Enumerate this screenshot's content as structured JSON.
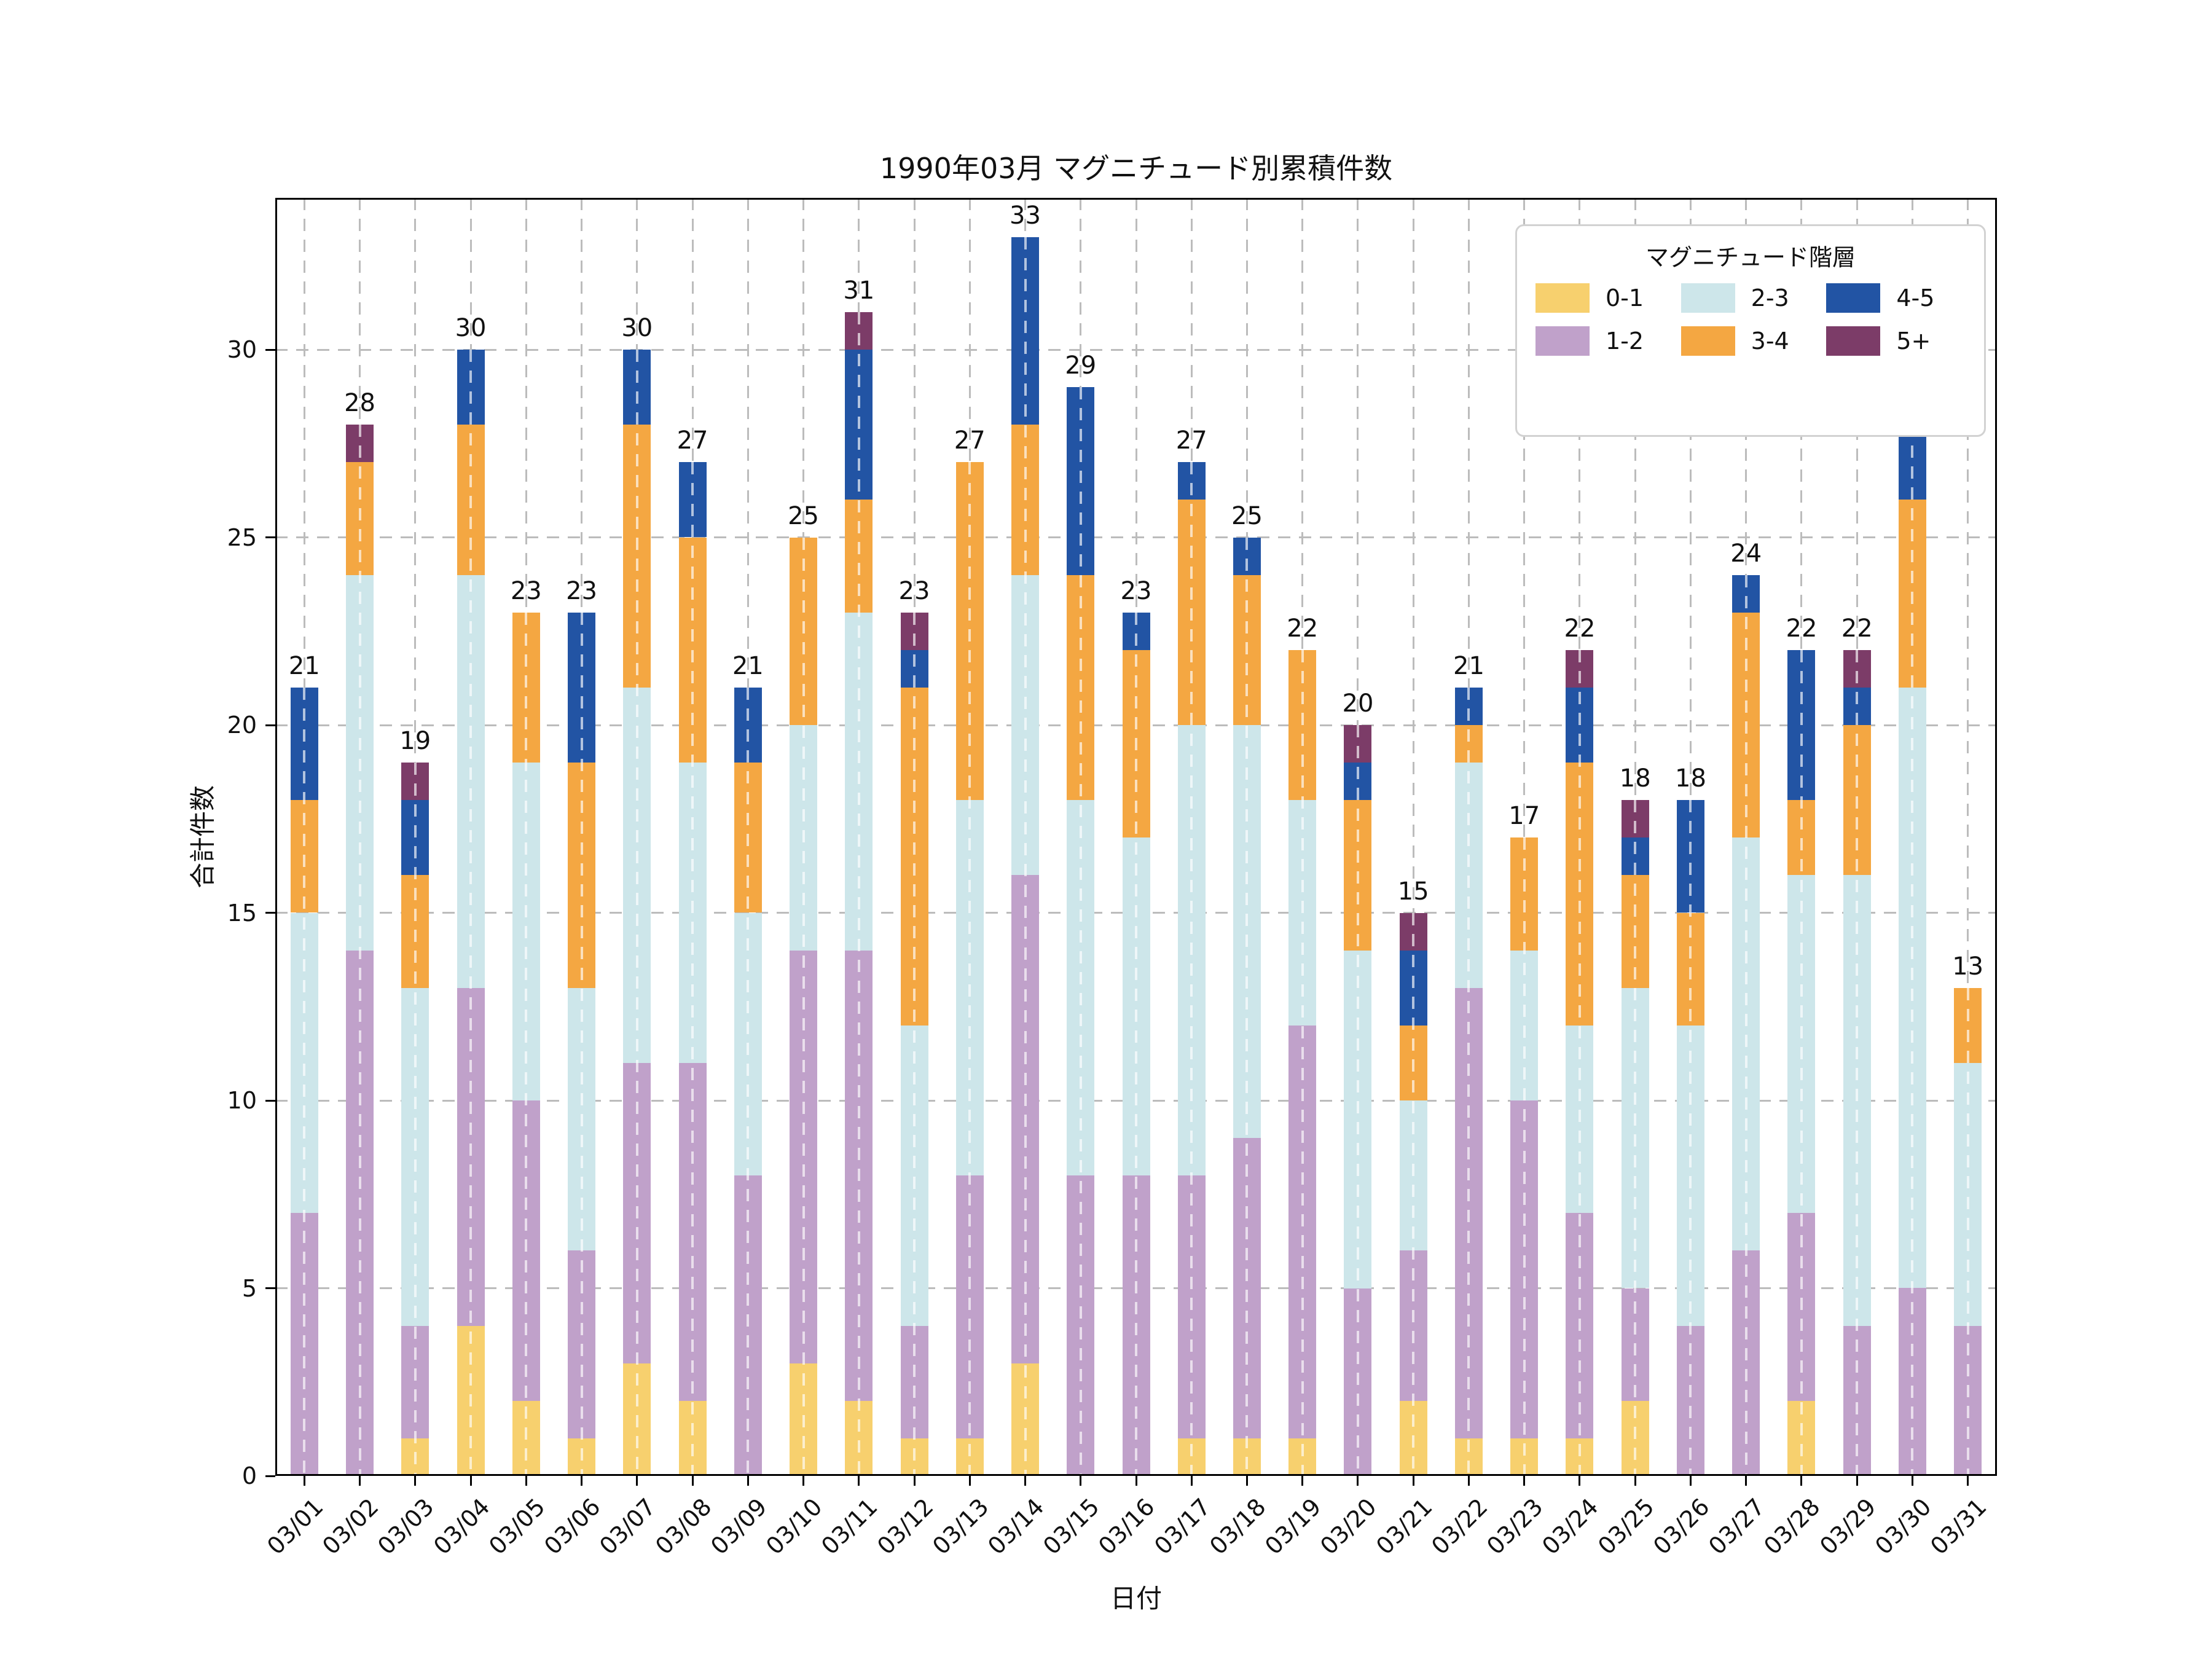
{
  "title": "1990年03月 マグニチュード別累積件数",
  "x_axis": {
    "label": "日付"
  },
  "y_axis": {
    "label": "合計件数",
    "ticks": [
      0,
      5,
      10,
      15,
      20,
      25,
      30
    ]
  },
  "legend": {
    "title": "マグニチュード階層",
    "position": "upper right",
    "entries": [
      "0-1",
      "1-2",
      "2-3",
      "3-4",
      "4-5",
      "5+"
    ]
  },
  "colors": {
    "grid": "#bcbcbc",
    "bar_centerline": "rgba(255,255,255,0.65)",
    "text": "#111111"
  },
  "chart_data": {
    "type": "bar",
    "stacked": true,
    "title": "1990年03月 マグニチュード別累積件数",
    "xlabel": "日付",
    "ylabel": "合計件数",
    "ylim": [
      0,
      34
    ],
    "grid": true,
    "legend_title": "マグニチュード階層",
    "categories": [
      "03/01",
      "03/02",
      "03/03",
      "03/04",
      "03/05",
      "03/06",
      "03/07",
      "03/08",
      "03/09",
      "03/10",
      "03/11",
      "03/12",
      "03/13",
      "03/14",
      "03/15",
      "03/16",
      "03/17",
      "03/18",
      "03/19",
      "03/20",
      "03/21",
      "03/22",
      "03/23",
      "03/24",
      "03/25",
      "03/26",
      "03/27",
      "03/28",
      "03/29",
      "03/30",
      "03/31"
    ],
    "series": [
      {
        "name": "0-1",
        "color": "#F7D06E",
        "values": [
          0,
          0,
          1,
          4,
          2,
          1,
          3,
          2,
          0,
          3,
          2,
          1,
          1,
          3,
          0,
          0,
          1,
          1,
          1,
          0,
          2,
          1,
          1,
          1,
          2,
          0,
          0,
          2,
          0,
          0,
          0
        ]
      },
      {
        "name": "1-2",
        "color": "#C0A1CA",
        "values": [
          7,
          14,
          3,
          9,
          8,
          5,
          8,
          9,
          8,
          11,
          12,
          3,
          7,
          13,
          8,
          8,
          7,
          8,
          11,
          5,
          4,
          12,
          9,
          6,
          3,
          4,
          6,
          5,
          4,
          5,
          4
        ]
      },
      {
        "name": "2-3",
        "color": "#CDE6EA",
        "values": [
          8,
          10,
          9,
          11,
          9,
          7,
          10,
          8,
          7,
          6,
          9,
          8,
          10,
          8,
          10,
          9,
          12,
          11,
          6,
          9,
          4,
          6,
          4,
          5,
          8,
          8,
          11,
          9,
          12,
          16,
          7
        ]
      },
      {
        "name": "3-4",
        "color": "#F4A742",
        "values": [
          3,
          3,
          3,
          4,
          4,
          6,
          7,
          6,
          4,
          5,
          3,
          9,
          9,
          4,
          6,
          5,
          6,
          4,
          4,
          4,
          2,
          1,
          3,
          7,
          3,
          3,
          6,
          2,
          4,
          5,
          2
        ]
      },
      {
        "name": "4-5",
        "color": "#2254A4",
        "values": [
          3,
          0,
          2,
          2,
          0,
          4,
          2,
          2,
          2,
          0,
          4,
          1,
          0,
          5,
          5,
          1,
          1,
          1,
          0,
          1,
          2,
          1,
          0,
          2,
          1,
          3,
          1,
          4,
          1,
          2,
          0
        ]
      },
      {
        "name": "5+",
        "color": "#7C3C68",
        "values": [
          0,
          1,
          1,
          0,
          0,
          0,
          0,
          0,
          0,
          0,
          1,
          1,
          0,
          0,
          0,
          0,
          0,
          0,
          0,
          1,
          1,
          0,
          0,
          1,
          1,
          0,
          0,
          0,
          1,
          0,
          0
        ]
      }
    ],
    "totals": [
      21,
      28,
      19,
      30,
      23,
      23,
      30,
      27,
      21,
      25,
      31,
      23,
      27,
      33,
      29,
      23,
      27,
      25,
      22,
      20,
      15,
      21,
      17,
      22,
      18,
      18,
      24,
      22,
      22,
      28,
      13
    ]
  }
}
